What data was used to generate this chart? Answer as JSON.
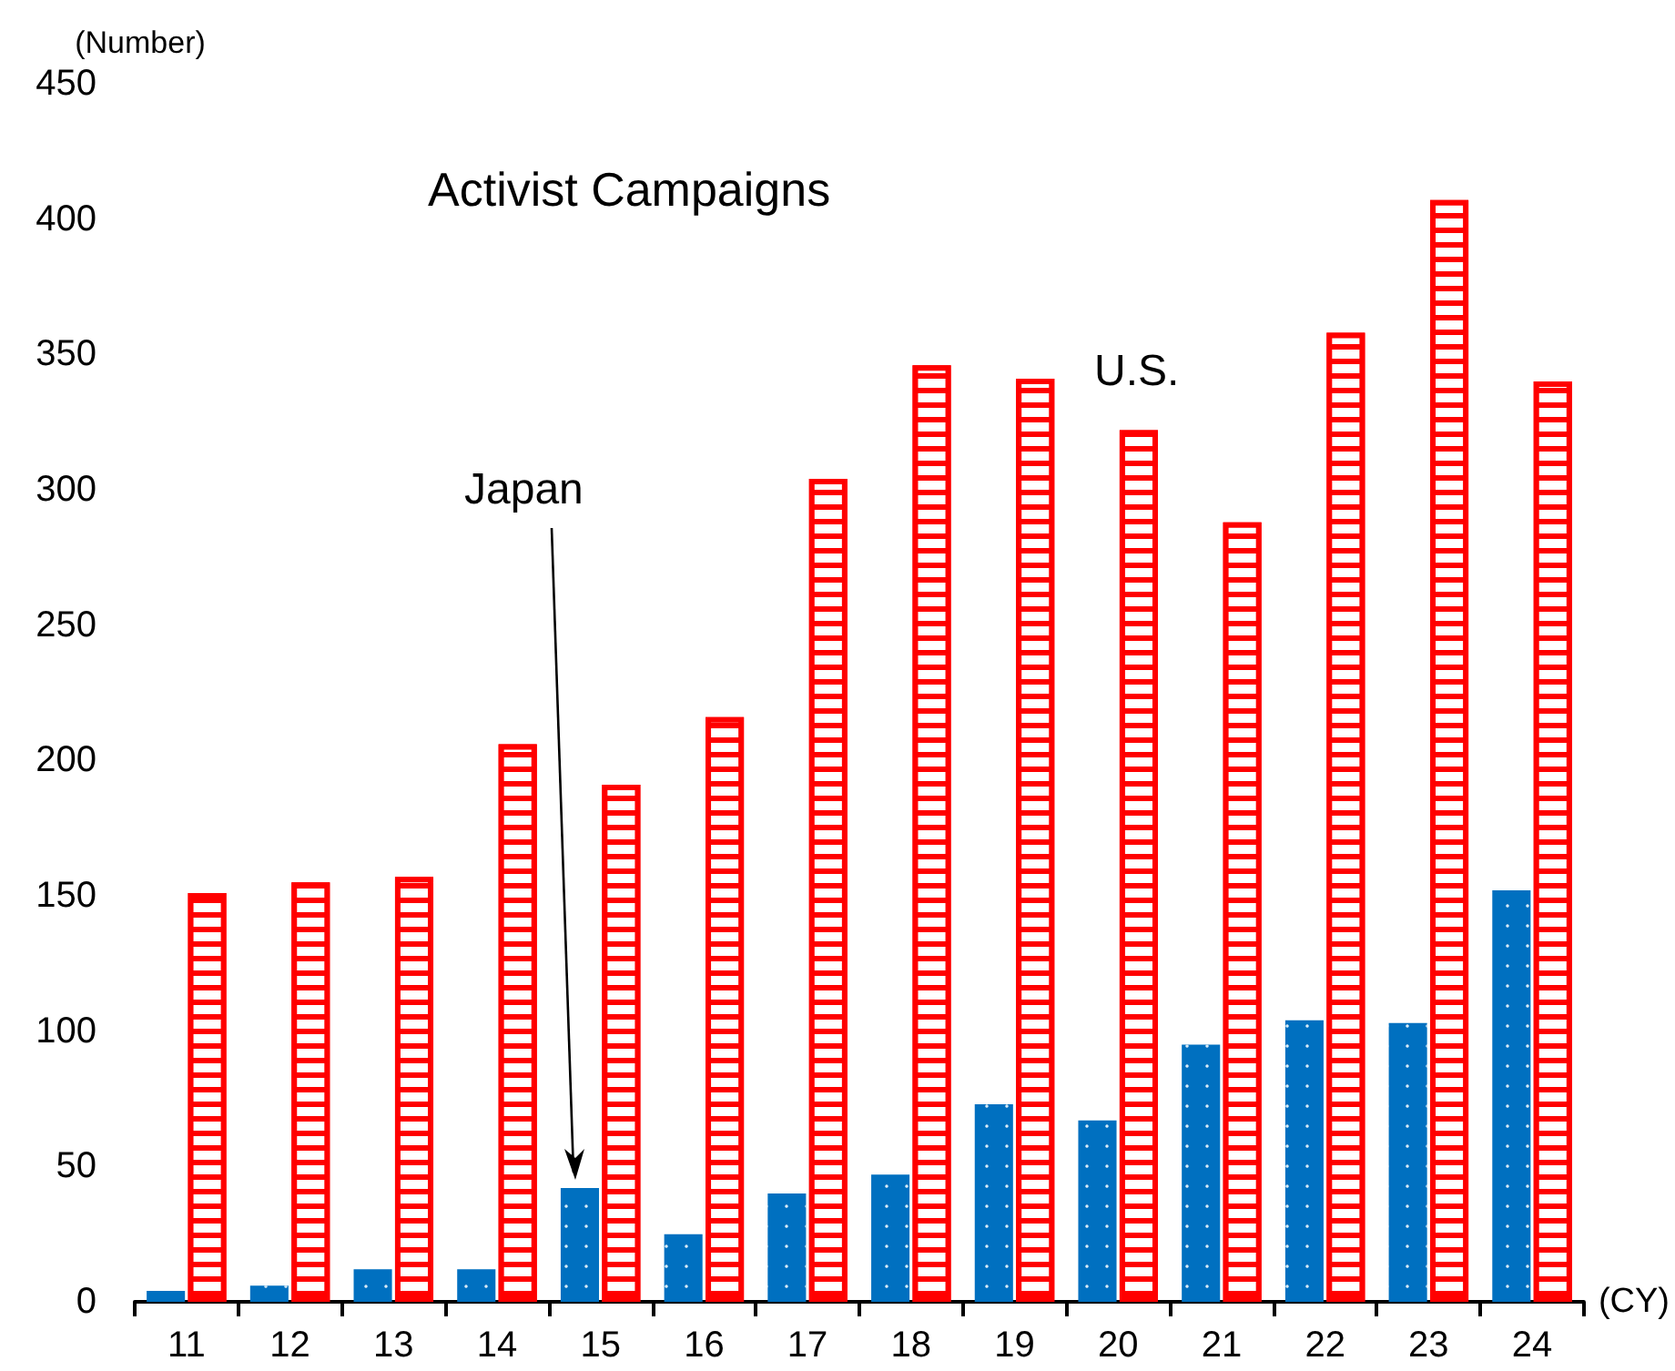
{
  "chart_data": {
    "type": "bar",
    "title": "Activist Campaigns",
    "xlabel": "(CY)",
    "ylabel": "(Number)",
    "categories": [
      "11",
      "12",
      "13",
      "14",
      "15",
      "16",
      "17",
      "18",
      "19",
      "20",
      "21",
      "22",
      "23",
      "24"
    ],
    "series": [
      {
        "name": "Japan",
        "color": "#0070c0",
        "values": [
          4,
          6,
          12,
          12,
          42,
          25,
          40,
          47,
          73,
          67,
          95,
          104,
          103,
          152
        ]
      },
      {
        "name": "U.S.",
        "color": "#ff0000",
        "values": [
          151,
          155,
          157,
          206,
          191,
          216,
          304,
          346,
          341,
          322,
          288,
          358,
          407,
          340
        ]
      }
    ],
    "ylim": [
      0,
      450
    ],
    "yticks": [
      0,
      50,
      100,
      150,
      200,
      250,
      300,
      350,
      400,
      450
    ],
    "grid": false,
    "legend": false
  }
}
